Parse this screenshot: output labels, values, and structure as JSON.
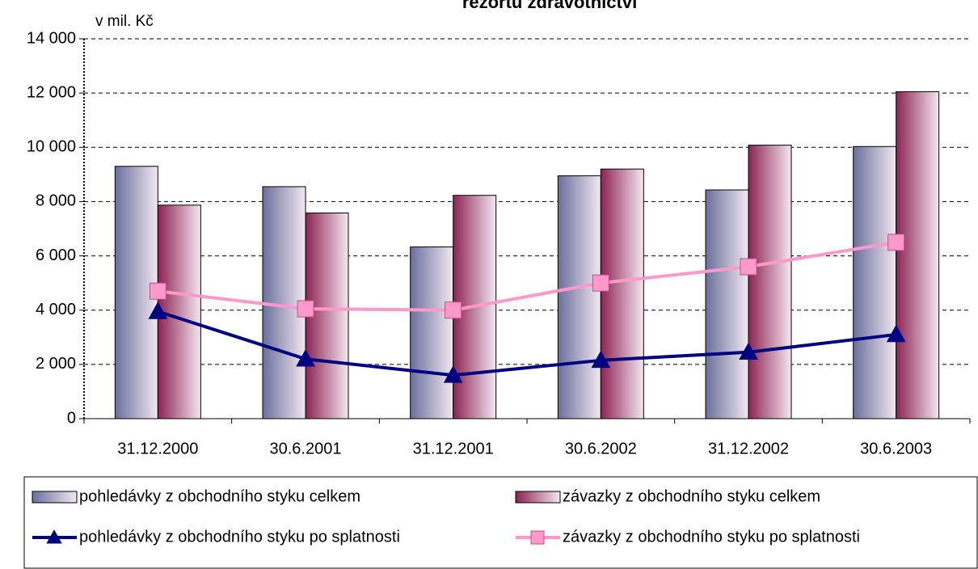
{
  "chart_data": {
    "type": "bar",
    "title": "rezortu zdravotnictví",
    "y_label": "v mil. Kč",
    "categories": [
      "31.12.2000",
      "30.6.2001",
      "31.12.2001",
      "30.6.2002",
      "31.12.2002",
      "30.6.2003"
    ],
    "series": [
      {
        "name": "pohledávky z obchodního styku celkem",
        "type": "bar",
        "color": "#6b6f9c",
        "values": [
          9300,
          8550,
          6330,
          8950,
          8430,
          10030
        ]
      },
      {
        "name": "závazky z obchodního styku celkem",
        "type": "bar",
        "color": "#8c2352",
        "values": [
          7870,
          7580,
          8230,
          9200,
          10080,
          12050
        ]
      },
      {
        "name": "pohledávky z obchodního styku po splatnosti",
        "type": "line",
        "color": "#000080",
        "marker": "triangle",
        "values": [
          3950,
          2200,
          1600,
          2150,
          2450,
          3100
        ]
      },
      {
        "name": "závazky z obchodního styku po splatnosti",
        "type": "line",
        "color": "#ff99cc",
        "marker": "square",
        "values": [
          4700,
          4050,
          4000,
          5000,
          5600,
          6500
        ]
      }
    ],
    "ylim": [
      0,
      14000
    ],
    "yticks": [
      {
        "value": 0,
        "label": "0"
      },
      {
        "value": 2000,
        "label": "2 000"
      },
      {
        "value": 4000,
        "label": "4 000"
      },
      {
        "value": 6000,
        "label": "6 000"
      },
      {
        "value": 8000,
        "label": "8 000"
      },
      {
        "value": 10000,
        "label": "10 000"
      },
      {
        "value": 12000,
        "label": "12 000"
      },
      {
        "value": 14000,
        "label": "14 000"
      }
    ],
    "grid": true,
    "legend": "bottom"
  }
}
